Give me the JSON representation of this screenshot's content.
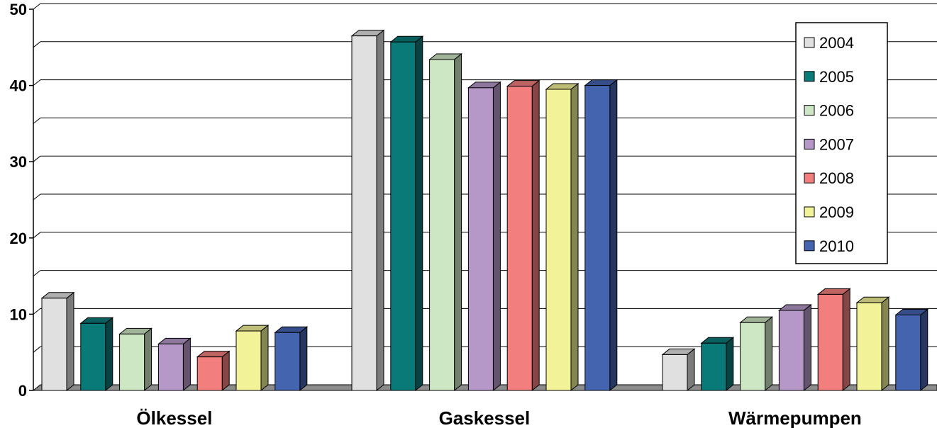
{
  "chart_data": {
    "type": "bar",
    "categories": [
      "Ölkessel",
      "Gaskessel",
      "Wärmepumpen"
    ],
    "series": [
      {
        "name": "2004",
        "color": "#e0e0e0",
        "values": [
          12.1,
          46.5,
          4.7
        ]
      },
      {
        "name": "2005",
        "color": "#0a7a78",
        "values": [
          8.8,
          45.7,
          6.2
        ]
      },
      {
        "name": "2006",
        "color": "#cde6c4",
        "values": [
          7.4,
          43.4,
          8.9
        ]
      },
      {
        "name": "2007",
        "color": "#b598c8",
        "values": [
          6.1,
          39.7,
          10.5
        ]
      },
      {
        "name": "2008",
        "color": "#f27f7d",
        "values": [
          4.4,
          39.9,
          12.6
        ]
      },
      {
        "name": "2009",
        "color": "#f2f298",
        "values": [
          7.8,
          39.5,
          11.5
        ]
      },
      {
        "name": "2010",
        "color": "#4464b0",
        "values": [
          7.6,
          40.0,
          9.9
        ]
      }
    ],
    "y_ticks": [
      "0",
      "10",
      "20",
      "30",
      "40",
      "50"
    ],
    "ylim": [
      0,
      50
    ],
    "grid": true,
    "legend_position": "top-right",
    "style": "3d-columns"
  }
}
